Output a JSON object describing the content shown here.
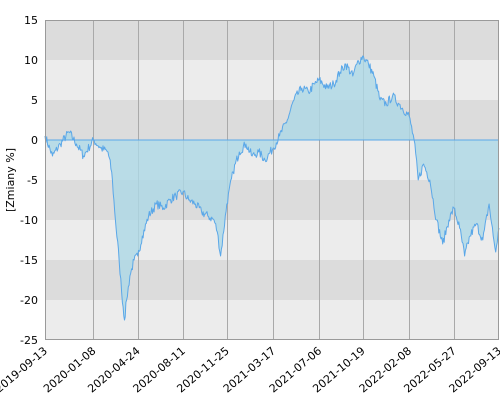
{
  "chart_data": {
    "type": "area",
    "ylabel": "[Zmiany %]",
    "ylim": [
      -25,
      15
    ],
    "yticks": [
      15,
      10,
      5,
      0,
      -5,
      -10,
      -15,
      -20,
      -25
    ],
    "xlim": [
      "2019-09-13",
      "2022-09-13"
    ],
    "xticks": [
      "2019-09-13",
      "2020-01-08",
      "2020-04-24",
      "2020-08-11",
      "2020-11-25",
      "2021-03-17",
      "2021-07-06",
      "2021-10-19",
      "2022-02-08",
      "2022-05-27",
      "2022-09-13"
    ],
    "grid": true,
    "colors": {
      "line": "#5aa7e8",
      "fill": "#add8e6",
      "band_dark": "#dcdcdc",
      "band_light": "#ececec",
      "gridline": "#a9a9a9"
    },
    "series": [
      {
        "x": [
          "2019-09-13",
          "2019-10-01",
          "2019-10-20",
          "2019-11-10",
          "2019-11-28",
          "2019-12-15",
          "2020-01-08",
          "2020-01-25",
          "2020-02-12",
          "2020-02-21",
          "2020-03-01",
          "2020-03-10",
          "2020-03-16",
          "2020-03-23",
          "2020-03-28",
          "2020-04-05",
          "2020-04-15",
          "2020-04-24",
          "2020-05-05",
          "2020-05-20",
          "2020-06-08",
          "2020-06-25",
          "2020-07-10",
          "2020-07-25",
          "2020-08-11",
          "2020-08-25",
          "2020-09-10",
          "2020-09-25",
          "2020-10-10",
          "2020-10-25",
          "2020-11-02",
          "2020-11-10",
          "2020-11-25",
          "2020-12-10",
          "2020-12-25",
          "2021-01-10",
          "2021-01-25",
          "2021-02-10",
          "2021-02-25",
          "2021-03-17",
          "2021-04-01",
          "2021-04-20",
          "2021-05-06",
          "2021-05-25",
          "2021-06-10",
          "2021-06-25",
          "2021-07-06",
          "2021-07-25",
          "2021-08-10",
          "2021-08-25",
          "2021-09-08",
          "2021-09-25",
          "2021-10-05",
          "2021-10-19",
          "2021-11-02",
          "2021-11-15",
          "2021-11-30",
          "2021-12-15",
          "2021-12-30",
          "2022-01-15",
          "2022-02-08",
          "2022-02-20",
          "2022-03-02",
          "2022-03-15",
          "2022-03-30",
          "2022-04-15",
          "2022-04-30",
          "2022-05-15",
          "2022-05-27",
          "2022-06-10",
          "2022-06-22",
          "2022-07-05",
          "2022-07-20",
          "2022-08-05",
          "2022-08-20",
          "2022-08-30",
          "2022-09-05",
          "2022-09-13"
        ],
        "values": [
          0.5,
          -2.0,
          -0.5,
          1.0,
          -0.5,
          -2.0,
          0.0,
          -1.0,
          -1.5,
          -4.0,
          -10.0,
          -15.0,
          -19.0,
          -22.5,
          -20.0,
          -17.0,
          -15.0,
          -14.5,
          -12.0,
          -9.5,
          -8.0,
          -8.5,
          -7.5,
          -7.0,
          -6.5,
          -7.5,
          -8.0,
          -9.0,
          -9.5,
          -10.0,
          -11.5,
          -14.5,
          -8.0,
          -4.0,
          -1.5,
          -0.5,
          -2.0,
          -1.5,
          -2.5,
          -1.0,
          0.5,
          2.5,
          5.0,
          6.5,
          6.0,
          7.0,
          7.5,
          6.5,
          7.0,
          8.5,
          9.5,
          8.0,
          9.5,
          10.5,
          9.5,
          8.0,
          5.0,
          4.5,
          5.5,
          4.5,
          3.0,
          0.0,
          -5.0,
          -3.0,
          -5.0,
          -10.0,
          -13.0,
          -10.0,
          -8.5,
          -11.0,
          -14.5,
          -12.0,
          -10.5,
          -12.5,
          -8.0,
          -12.0,
          -14.0,
          -11.0
        ]
      }
    ]
  }
}
